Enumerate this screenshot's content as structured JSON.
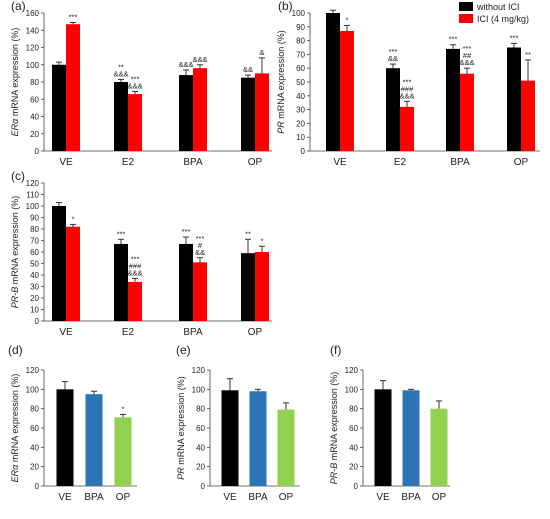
{
  "legend": {
    "position": "top-right",
    "entries": [
      {
        "label": "without ICI",
        "color": "#000000"
      },
      {
        "label": "ICI (4 mg/kg)",
        "color": "#ff0000"
      }
    ]
  },
  "chart_data": [
    {
      "panel": "(a)",
      "type": "bar",
      "ylabel_italic": "ERα",
      "ylabel_rest": " mRNA expression (%)",
      "ylim": [
        0,
        160
      ],
      "yticks": [
        0,
        20,
        40,
        60,
        80,
        100,
        120,
        140,
        160
      ],
      "categories": [
        "VE",
        "E2",
        "BPA",
        "OP"
      ],
      "series": [
        {
          "name": "without ICI",
          "color": "#000000",
          "values": [
            100,
            80,
            88,
            85
          ],
          "errors": [
            3,
            3,
            6,
            3
          ],
          "annotations": [
            [],
            [
              "**",
              "&&&"
            ],
            [
              "&&&"
            ],
            [
              "&&"
            ]
          ]
        },
        {
          "name": "ICI (4 mg/kg)",
          "color": "#ff0000",
          "values": [
            147,
            66,
            96,
            90
          ],
          "errors": [
            2,
            3,
            4,
            18
          ],
          "annotations": [
            [
              "***"
            ],
            [
              "***",
              "&&&"
            ],
            [
              "&&&"
            ],
            [
              "&"
            ]
          ]
        }
      ]
    },
    {
      "panel": "(b)",
      "type": "bar",
      "ylabel_italic": "PR",
      "ylabel_rest": " mRNA expression (%)",
      "ylim": [
        0,
        100
      ],
      "yticks": [
        0,
        10,
        20,
        30,
        40,
        50,
        60,
        70,
        80,
        90,
        100
      ],
      "categories": [
        "VE",
        "E2",
        "BPA",
        "OP"
      ],
      "series": [
        {
          "name": "without ICI",
          "color": "#000000",
          "values": [
            100,
            60,
            74,
            75
          ],
          "errors": [
            2,
            3,
            3,
            3
          ],
          "annotations": [
            [],
            [
              "***",
              "&&"
            ],
            [
              "***"
            ],
            [
              "***"
            ]
          ]
        },
        {
          "name": "ICI (4 mg/kg)",
          "color": "#ff0000",
          "values": [
            87,
            32,
            56,
            51
          ],
          "errors": [
            4,
            4,
            4,
            15
          ],
          "annotations": [
            [
              "*"
            ],
            [
              "***",
              "###",
              "&&&"
            ],
            [
              "***",
              "##",
              "&&&"
            ],
            [
              "**"
            ]
          ]
        }
      ]
    },
    {
      "panel": "(c)",
      "type": "bar",
      "ylabel_italic": "PR-B",
      "ylabel_rest": " mRNA expression (%)",
      "ylim": [
        0,
        120
      ],
      "yticks": [
        0,
        10,
        20,
        30,
        40,
        50,
        60,
        70,
        80,
        90,
        100,
        110,
        120
      ],
      "categories": [
        "VE",
        "E2",
        "BPA",
        "OP"
      ],
      "series": [
        {
          "name": "without ICI",
          "color": "#000000",
          "values": [
            100,
            67,
            67,
            59
          ],
          "errors": [
            3,
            4,
            6,
            12
          ],
          "annotations": [
            [],
            [
              "***"
            ],
            [
              "***"
            ],
            [
              "**"
            ]
          ]
        },
        {
          "name": "ICI (4 mg/kg)",
          "color": "#ff0000",
          "values": [
            82,
            34,
            51,
            60
          ],
          "errors": [
            2,
            3,
            4,
            5
          ],
          "annotations": [
            [
              "*"
            ],
            [
              "***",
              "###",
              "&&&"
            ],
            [
              "***",
              "#",
              "&&"
            ],
            [
              "*"
            ]
          ]
        }
      ]
    },
    {
      "panel": "(d)",
      "type": "bar",
      "ylabel_italic": "ERα",
      "ylabel_rest": " mRNA expression (%)",
      "ylim": [
        0,
        120
      ],
      "yticks": [
        0,
        20,
        40,
        60,
        80,
        100,
        120
      ],
      "categories": [
        "VE",
        "BPA",
        "OP"
      ],
      "colors": [
        "#000000",
        "#2e75b6",
        "#92d050"
      ],
      "values": [
        100,
        95,
        71
      ],
      "errors": [
        8,
        3,
        3
      ],
      "annotations": [
        [],
        [],
        [
          "*"
        ]
      ]
    },
    {
      "panel": "(e)",
      "type": "bar",
      "ylabel_italic": "PR",
      "ylabel_rest": " mRNA expression (%)",
      "ylim": [
        0,
        120
      ],
      "yticks": [
        0,
        20,
        40,
        60,
        80,
        100,
        120
      ],
      "categories": [
        "VE",
        "BPA",
        "OP"
      ],
      "colors": [
        "#000000",
        "#2e75b6",
        "#92d050"
      ],
      "values": [
        99,
        98,
        79
      ],
      "errors": [
        12,
        2,
        7
      ],
      "annotations": [
        [],
        [],
        []
      ]
    },
    {
      "panel": "(f)",
      "type": "bar",
      "ylabel_italic": "PR-B",
      "ylabel_rest": " mRNA expression (%)",
      "ylim": [
        0,
        120
      ],
      "yticks": [
        0,
        20,
        40,
        60,
        80,
        100,
        120
      ],
      "categories": [
        "VE",
        "BPA",
        "OP"
      ],
      "colors": [
        "#000000",
        "#2e75b6",
        "#92d050"
      ],
      "values": [
        100,
        99,
        80
      ],
      "errors": [
        9,
        1,
        8
      ],
      "annotations": [
        [],
        [],
        []
      ]
    }
  ]
}
